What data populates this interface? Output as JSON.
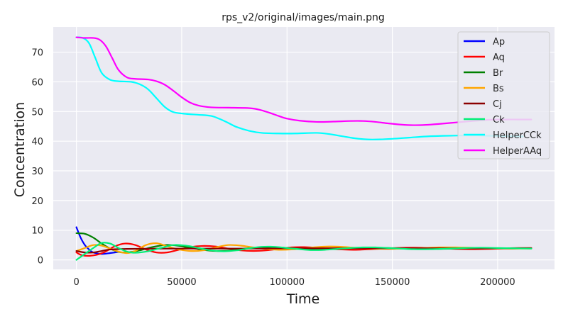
{
  "chart_data": {
    "type": "line",
    "title": "rps_v2/original/images/main.png",
    "xlabel": "Time",
    "ylabel": "Concentration",
    "xlim": [
      -11000,
      227000
    ],
    "ylim": [
      -3.2,
      78.5
    ],
    "xticks": [
      0,
      50000,
      100000,
      150000,
      200000
    ],
    "xtick_labels": [
      "0",
      "50000",
      "100000",
      "150000",
      "200000"
    ],
    "yticks": [
      0,
      10,
      20,
      30,
      40,
      50,
      60,
      70
    ],
    "ytick_labels": [
      "0",
      "10",
      "20",
      "30",
      "40",
      "50",
      "60",
      "70"
    ],
    "grid": true,
    "legend_position": "top-right",
    "series": [
      {
        "name": "Ap",
        "color": "#0000ff",
        "points": [
          [
            0,
            11
          ],
          [
            2000,
            7.5
          ],
          [
            4000,
            5
          ],
          [
            6000,
            3.5
          ],
          [
            8000,
            2.5
          ],
          [
            12000,
            2
          ],
          [
            16000,
            2.3
          ],
          [
            20000,
            2.7
          ]
        ]
      },
      {
        "name": "Aq",
        "color": "#ff0000",
        "points": [
          [
            0,
            2.5
          ],
          [
            3000,
            1.5
          ],
          [
            8000,
            1.5
          ],
          [
            13000,
            2.5
          ],
          [
            18000,
            4.5
          ],
          [
            23000,
            5.5
          ],
          [
            28000,
            5
          ],
          [
            33000,
            3.5
          ],
          [
            38000,
            2.5
          ],
          [
            43000,
            2.5
          ],
          [
            48000,
            3.3
          ],
          [
            54000,
            4.3
          ],
          [
            60000,
            4.7
          ],
          [
            66000,
            4.5
          ],
          [
            72000,
            3.8
          ],
          [
            78000,
            3.2
          ],
          [
            84000,
            3
          ],
          [
            90000,
            3.2
          ],
          [
            96000,
            3.7
          ],
          [
            102000,
            4.2
          ],
          [
            108000,
            4.3
          ],
          [
            114000,
            4.1
          ],
          [
            120000,
            3.7
          ],
          [
            126000,
            3.5
          ],
          [
            132000,
            3.4
          ],
          [
            140000,
            3.6
          ],
          [
            148000,
            3.9
          ],
          [
            156000,
            4.1
          ],
          [
            164000,
            4.1
          ],
          [
            172000,
            3.9
          ],
          [
            180000,
            3.7
          ],
          [
            188000,
            3.6
          ],
          [
            196000,
            3.7
          ],
          [
            204000,
            3.9
          ],
          [
            210000,
            4
          ],
          [
            216000,
            4
          ]
        ]
      },
      {
        "name": "Br",
        "color": "#008000",
        "points": [
          [
            0,
            9
          ],
          [
            4000,
            8.8
          ],
          [
            8000,
            7.5
          ],
          [
            12000,
            5.5
          ],
          [
            16000,
            3.8
          ],
          [
            20000,
            2.7
          ],
          [
            24000,
            2.5
          ],
          [
            30000,
            3.2
          ],
          [
            36000,
            4.3
          ],
          [
            42000,
            5
          ],
          [
            48000,
            4.8
          ],
          [
            54000,
            4.1
          ],
          [
            60000,
            3.4
          ],
          [
            66000,
            3
          ],
          [
            72000,
            3.1
          ],
          [
            78000,
            3.6
          ],
          [
            84000,
            4.1
          ],
          [
            90000,
            4.3
          ],
          [
            96000,
            4.2
          ],
          [
            102000,
            3.9
          ],
          [
            108000,
            3.6
          ],
          [
            114000,
            3.5
          ],
          [
            120000,
            3.6
          ],
          [
            126000,
            3.8
          ],
          [
            132000,
            4
          ],
          [
            140000,
            4.1
          ],
          [
            148000,
            4
          ],
          [
            156000,
            3.8
          ],
          [
            164000,
            3.7
          ],
          [
            172000,
            3.7
          ],
          [
            180000,
            3.8
          ],
          [
            190000,
            3.9
          ],
          [
            200000,
            3.9
          ],
          [
            208000,
            3.9
          ],
          [
            216000,
            3.9
          ]
        ]
      },
      {
        "name": "Bs",
        "color": "#ffa500",
        "points": [
          [
            0,
            3
          ],
          [
            4000,
            4
          ],
          [
            8000,
            5
          ],
          [
            12000,
            4.8
          ],
          [
            16000,
            3.8
          ],
          [
            20000,
            2.8
          ],
          [
            24000,
            2.3
          ],
          [
            28000,
            3
          ],
          [
            33000,
            5
          ],
          [
            38000,
            5.6
          ],
          [
            43000,
            4.6
          ],
          [
            48000,
            3.6
          ],
          [
            54000,
            3
          ],
          [
            60000,
            3.2
          ],
          [
            66000,
            4.2
          ],
          [
            72000,
            5
          ],
          [
            78000,
            4.8
          ],
          [
            84000,
            4.2
          ],
          [
            90000,
            3.7
          ],
          [
            96000,
            3.4
          ],
          [
            102000,
            3.5
          ],
          [
            108000,
            3.9
          ],
          [
            114000,
            4.3
          ],
          [
            120000,
            4.5
          ],
          [
            126000,
            4.4
          ],
          [
            132000,
            4.1
          ],
          [
            140000,
            3.8
          ],
          [
            148000,
            3.7
          ],
          [
            156000,
            3.8
          ],
          [
            164000,
            4
          ],
          [
            172000,
            4.2
          ],
          [
            180000,
            4.2
          ],
          [
            188000,
            4.1
          ],
          [
            196000,
            3.9
          ],
          [
            204000,
            3.8
          ],
          [
            210000,
            3.8
          ],
          [
            216000,
            3.8
          ]
        ]
      },
      {
        "name": "Cj",
        "color": "#8b0000",
        "points": [
          [
            0,
            3
          ],
          [
            4000,
            2.5
          ],
          [
            8000,
            2.5
          ],
          [
            12000,
            3
          ],
          [
            16000,
            3.5
          ],
          [
            24000,
            3.7
          ],
          [
            40000,
            3.8
          ],
          [
            60000,
            3.8
          ],
          [
            80000,
            3.8
          ],
          [
            100000,
            3.9
          ],
          [
            120000,
            3.9
          ],
          [
            140000,
            3.9
          ],
          [
            160000,
            3.9
          ],
          [
            180000,
            3.9
          ],
          [
            200000,
            3.9
          ],
          [
            216000,
            3.9
          ]
        ]
      },
      {
        "name": "Ck",
        "color": "#00ee76",
        "points": [
          [
            0,
            0
          ],
          [
            4000,
            2
          ],
          [
            8000,
            4
          ],
          [
            12000,
            5.7
          ],
          [
            16000,
            5.5
          ],
          [
            20000,
            4
          ],
          [
            24000,
            2.8
          ],
          [
            28000,
            2.4
          ],
          [
            34000,
            2.9
          ],
          [
            40000,
            4
          ],
          [
            46000,
            5
          ],
          [
            52000,
            4.8
          ],
          [
            58000,
            4
          ],
          [
            64000,
            3.2
          ],
          [
            70000,
            2.9
          ],
          [
            76000,
            3.2
          ],
          [
            82000,
            3.9
          ],
          [
            88000,
            4.4
          ],
          [
            94000,
            4.4
          ],
          [
            100000,
            4
          ],
          [
            106000,
            3.6
          ],
          [
            112000,
            3.3
          ],
          [
            118000,
            3.4
          ],
          [
            124000,
            3.7
          ],
          [
            130000,
            4
          ],
          [
            136000,
            4.2
          ],
          [
            142000,
            4.2
          ],
          [
            148000,
            4
          ],
          [
            154000,
            3.8
          ],
          [
            160000,
            3.6
          ],
          [
            168000,
            3.6
          ],
          [
            176000,
            3.8
          ],
          [
            184000,
            4
          ],
          [
            192000,
            4.1
          ],
          [
            200000,
            4
          ],
          [
            208000,
            3.9
          ],
          [
            216000,
            3.8
          ]
        ]
      },
      {
        "name": "HelperCCk",
        "color": "#00ffff",
        "points": [
          [
            0,
            75
          ],
          [
            3000,
            74.8
          ],
          [
            6000,
            73
          ],
          [
            9000,
            68
          ],
          [
            12000,
            63
          ],
          [
            16000,
            60.7
          ],
          [
            20000,
            60.2
          ],
          [
            26000,
            60
          ],
          [
            30000,
            59.2
          ],
          [
            34000,
            57.5
          ],
          [
            38000,
            54.5
          ],
          [
            42000,
            51.5
          ],
          [
            46000,
            49.8
          ],
          [
            52000,
            49.2
          ],
          [
            58000,
            48.9
          ],
          [
            64000,
            48.5
          ],
          [
            68000,
            47.5
          ],
          [
            72000,
            46.2
          ],
          [
            76000,
            44.8
          ],
          [
            82000,
            43.5
          ],
          [
            88000,
            42.8
          ],
          [
            96000,
            42.6
          ],
          [
            104000,
            42.6
          ],
          [
            114000,
            42.8
          ],
          [
            120000,
            42.4
          ],
          [
            126000,
            41.7
          ],
          [
            132000,
            41
          ],
          [
            138000,
            40.6
          ],
          [
            144000,
            40.6
          ],
          [
            150000,
            40.8
          ],
          [
            158000,
            41.2
          ],
          [
            166000,
            41.6
          ],
          [
            174000,
            41.8
          ],
          [
            182000,
            41.9
          ],
          [
            190000,
            41.9
          ],
          [
            198000,
            41.8
          ],
          [
            206000,
            41.7
          ],
          [
            212000,
            41.6
          ]
        ]
      },
      {
        "name": "HelperAAq",
        "color": "#ff00ff",
        "points": [
          [
            0,
            75
          ],
          [
            4000,
            74.8
          ],
          [
            8000,
            74.8
          ],
          [
            11000,
            74.2
          ],
          [
            14000,
            72
          ],
          [
            17000,
            68
          ],
          [
            20000,
            64
          ],
          [
            24000,
            61.5
          ],
          [
            28000,
            61
          ],
          [
            34000,
            60.8
          ],
          [
            38000,
            60.2
          ],
          [
            42000,
            59
          ],
          [
            46000,
            57
          ],
          [
            50000,
            54.8
          ],
          [
            54000,
            53
          ],
          [
            58000,
            52
          ],
          [
            64000,
            51.4
          ],
          [
            72000,
            51.3
          ],
          [
            80000,
            51.2
          ],
          [
            84000,
            51
          ],
          [
            88000,
            50.4
          ],
          [
            92000,
            49.5
          ],
          [
            96000,
            48.5
          ],
          [
            100000,
            47.6
          ],
          [
            106000,
            46.9
          ],
          [
            114000,
            46.5
          ],
          [
            122000,
            46.6
          ],
          [
            130000,
            46.8
          ],
          [
            136000,
            46.8
          ],
          [
            142000,
            46.5
          ],
          [
            148000,
            46
          ],
          [
            154000,
            45.6
          ],
          [
            160000,
            45.4
          ],
          [
            166000,
            45.5
          ],
          [
            172000,
            45.8
          ],
          [
            180000,
            46.3
          ],
          [
            188000,
            46.8
          ],
          [
            196000,
            47.2
          ],
          [
            204000,
            47.3
          ],
          [
            210000,
            47.3
          ],
          [
            216000,
            47.3
          ]
        ]
      }
    ]
  },
  "colors": {
    "plot_background": "#eaeaf2",
    "grid": "#ffffff"
  }
}
